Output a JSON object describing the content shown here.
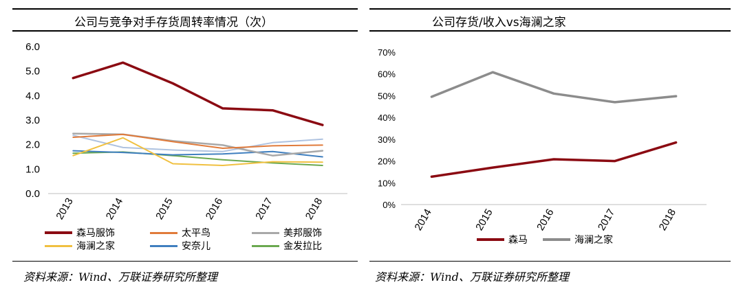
{
  "left": {
    "title": "公司与竞争对手存货周转率情况（次）",
    "source": "资料来源：Wind、万联证券研究所整理"
  },
  "right": {
    "title": "公司存货/收入vs海澜之家",
    "source": "资料来源：Wind、万联证券研究所整理"
  },
  "chart_data": [
    {
      "type": "line",
      "title": "公司与竞争对手存货周转率情况（次）",
      "categories": [
        "2013",
        "2014",
        "2015",
        "2016",
        "2017",
        "2018"
      ],
      "ylim": [
        0,
        6
      ],
      "yticks": [
        "0.0",
        "1.0",
        "2.0",
        "3.0",
        "4.0",
        "5.0",
        "6.0"
      ],
      "grid": false,
      "legend_position": "bottom",
      "series": [
        {
          "name": "森马服饰",
          "color": "#8b0a12",
          "width": 3.5,
          "values": [
            4.72,
            5.35,
            4.5,
            3.48,
            3.4,
            2.8
          ]
        },
        {
          "name": "太平鸟",
          "color": "#e07a3a",
          "width": 2,
          "values": [
            2.3,
            2.42,
            2.12,
            1.85,
            1.95,
            1.98
          ]
        },
        {
          "name": "美邦服饰",
          "color": "#a8a8a8",
          "width": 2.5,
          "values": [
            2.45,
            2.42,
            2.15,
            1.98,
            1.55,
            1.75
          ]
        },
        {
          "name": "海澜之家",
          "color": "#f0c040",
          "width": 2,
          "values": [
            1.55,
            2.28,
            1.22,
            1.15,
            1.3,
            1.28
          ]
        },
        {
          "name": "安奈儿",
          "color": "#3f7fbf",
          "width": 2,
          "values": [
            1.75,
            1.68,
            1.58,
            1.62,
            1.72,
            1.5
          ]
        },
        {
          "name": "金发拉比",
          "color": "#6aa84f",
          "width": 2,
          "values": [
            1.65,
            1.7,
            1.55,
            1.38,
            1.25,
            1.15
          ]
        },
        {
          "name": "",
          "color": "#aec2e0",
          "width": 2,
          "values": [
            2.38,
            1.88,
            1.78,
            1.72,
            2.08,
            2.22
          ]
        }
      ]
    },
    {
      "type": "line",
      "title": "公司存货/收入vs海澜之家",
      "categories": [
        "2014",
        "2015",
        "2016",
        "2017",
        "2018"
      ],
      "ylim": [
        0,
        70
      ],
      "yticks": [
        "0%",
        "10%",
        "20%",
        "30%",
        "40%",
        "50%",
        "60%",
        "70%"
      ],
      "grid": false,
      "legend_position": "bottom",
      "series": [
        {
          "name": "森马",
          "color": "#8b0a12",
          "width": 3.5,
          "values": [
            12.8,
            17,
            20.8,
            20,
            28.5
          ]
        },
        {
          "name": "海澜之家",
          "color": "#8c8c8c",
          "width": 3.5,
          "values": [
            49.5,
            60.8,
            51,
            47,
            49.8
          ]
        }
      ]
    }
  ]
}
